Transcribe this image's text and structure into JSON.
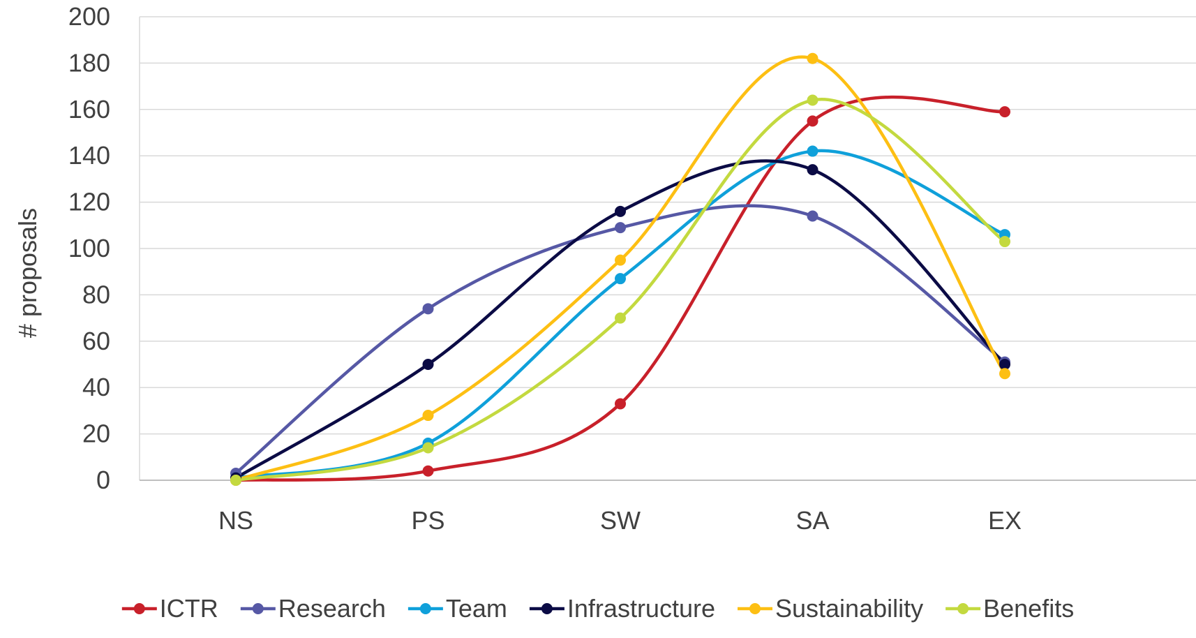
{
  "chart_data": {
    "type": "line",
    "smooth": true,
    "title": "",
    "xlabel": "",
    "ylabel": "# proposals",
    "categories": [
      "NS",
      "PS",
      "SW",
      "SA",
      "EX"
    ],
    "ylim": [
      0,
      200
    ],
    "yticks": [
      0,
      20,
      40,
      60,
      80,
      100,
      120,
      140,
      160,
      180,
      200
    ],
    "grid": "horizontal",
    "legend_position": "bottom",
    "series": [
      {
        "name": "ICTR",
        "color": "#C8202A",
        "values": [
          0,
          4,
          33,
          155,
          159
        ]
      },
      {
        "name": "Research",
        "color": "#5658A5",
        "values": [
          3,
          74,
          109,
          114,
          51
        ]
      },
      {
        "name": "Team",
        "color": "#0FA0DA",
        "values": [
          1,
          16,
          87,
          142,
          106
        ]
      },
      {
        "name": "Infrastructure",
        "color": "#0B0B45",
        "values": [
          1,
          50,
          116,
          134,
          50
        ]
      },
      {
        "name": "Sustainability",
        "color": "#FDBF13",
        "values": [
          0,
          28,
          95,
          182,
          46
        ]
      },
      {
        "name": "Benefits",
        "color": "#C3D93F",
        "values": [
          0,
          14,
          70,
          164,
          103
        ]
      }
    ]
  }
}
